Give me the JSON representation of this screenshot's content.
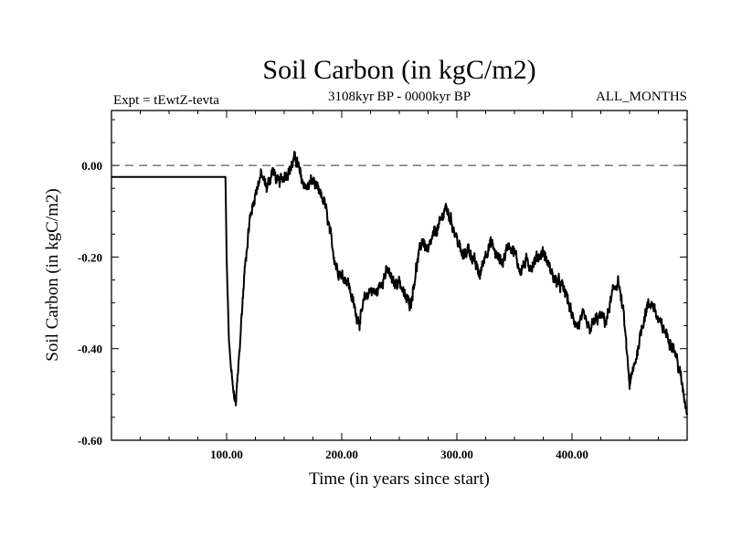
{
  "chart_data": {
    "type": "line",
    "title": "Soil Carbon (in kgC/m2)",
    "subtitle_left": "Expt = tEwtZ-tevta",
    "subtitle_center": "3108kyr BP - 0000kyr BP",
    "subtitle_right": "ALL_MONTHS",
    "xlabel": "Time (in years since start)",
    "ylabel": "Soil Carbon (in kgC/m2)",
    "xlim": [
      0,
      500
    ],
    "ylim": [
      -0.6,
      0.12
    ],
    "x_ticks": [
      100,
      200,
      300,
      400
    ],
    "x_tick_labels": [
      "100.00",
      "200.00",
      "300.00",
      "400.00"
    ],
    "y_ticks": [
      0.0,
      -0.2,
      -0.4,
      -0.6
    ],
    "y_tick_labels": [
      "0.00",
      "-0.20",
      "-0.40",
      "-0.60"
    ],
    "reference_line": {
      "y": 0.0,
      "style": "dashed"
    },
    "series": [
      {
        "name": "Soil Carbon",
        "color": "#000000",
        "x": [
          0,
          99,
          100,
          102,
          104,
          106,
          108,
          110,
          113,
          116,
          120,
          125,
          130,
          135,
          140,
          145,
          150,
          155,
          160,
          165,
          170,
          175,
          180,
          185,
          190,
          195,
          200,
          205,
          210,
          213,
          216,
          220,
          225,
          230,
          235,
          240,
          245,
          250,
          255,
          260,
          265,
          270,
          275,
          280,
          285,
          290,
          295,
          300,
          305,
          310,
          315,
          320,
          325,
          330,
          335,
          340,
          345,
          350,
          355,
          360,
          365,
          370,
          375,
          380,
          385,
          390,
          395,
          400,
          405,
          410,
          415,
          420,
          425,
          430,
          435,
          440,
          445,
          450,
          455,
          460,
          465,
          470,
          475,
          480,
          485,
          490,
          495,
          500
        ],
        "y": [
          -0.025,
          -0.025,
          -0.2,
          -0.38,
          -0.45,
          -0.5,
          -0.52,
          -0.45,
          -0.33,
          -0.22,
          -0.12,
          -0.06,
          -0.02,
          -0.05,
          -0.01,
          -0.04,
          -0.02,
          -0.01,
          0.02,
          -0.03,
          -0.05,
          -0.03,
          -0.06,
          -0.08,
          -0.15,
          -0.22,
          -0.24,
          -0.25,
          -0.3,
          -0.33,
          -0.34,
          -0.29,
          -0.27,
          -0.28,
          -0.25,
          -0.23,
          -0.26,
          -0.25,
          -0.29,
          -0.3,
          -0.22,
          -0.16,
          -0.19,
          -0.15,
          -0.13,
          -0.09,
          -0.12,
          -0.16,
          -0.2,
          -0.18,
          -0.21,
          -0.24,
          -0.19,
          -0.17,
          -0.2,
          -0.21,
          -0.17,
          -0.19,
          -0.23,
          -0.21,
          -0.22,
          -0.2,
          -0.19,
          -0.22,
          -0.25,
          -0.26,
          -0.28,
          -0.33,
          -0.35,
          -0.33,
          -0.36,
          -0.34,
          -0.33,
          -0.34,
          -0.28,
          -0.25,
          -0.33,
          -0.48,
          -0.43,
          -0.36,
          -0.31,
          -0.3,
          -0.34,
          -0.36,
          -0.38,
          -0.41,
          -0.47,
          -0.54
        ]
      }
    ]
  }
}
